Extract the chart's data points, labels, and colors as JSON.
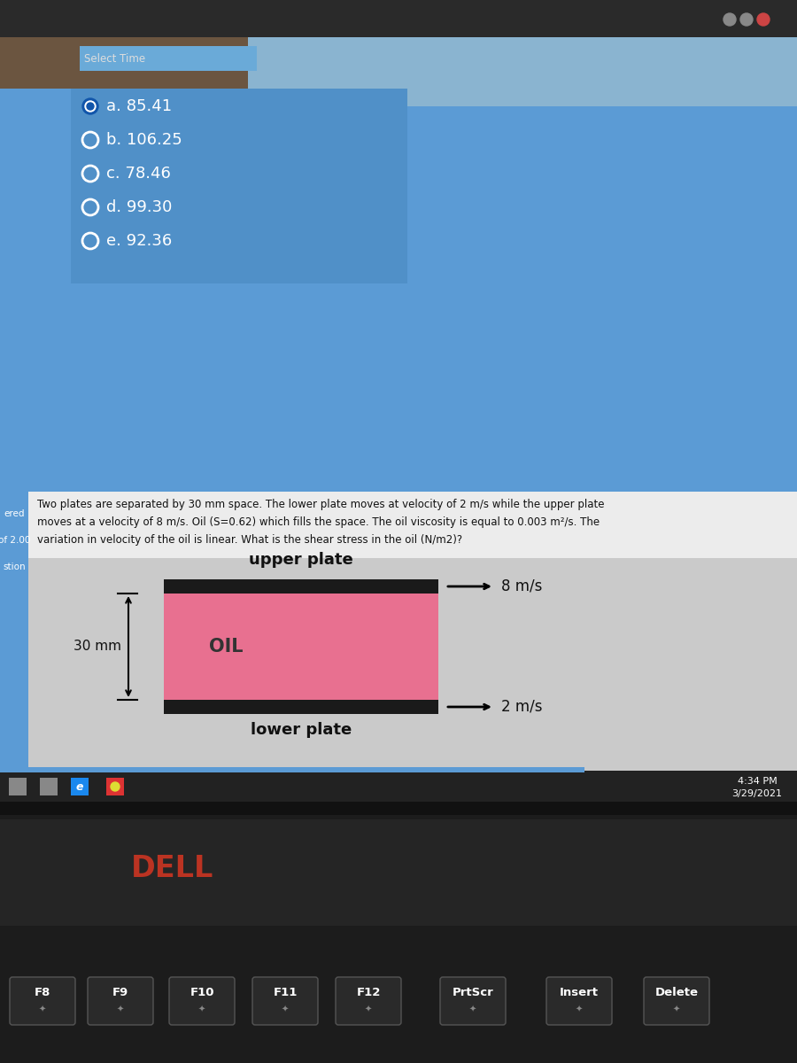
{
  "options": [
    {
      "label": "a. 85.41",
      "selected": true
    },
    {
      "label": "b. 106.25",
      "selected": false
    },
    {
      "label": "c. 78.46",
      "selected": false
    },
    {
      "label": "d. 99.30",
      "selected": false
    },
    {
      "label": "e. 92.36",
      "selected": false
    }
  ],
  "question_lines": [
    "Two plates are separated by 30 mm space. The lower plate moves at velocity of 2 m/s while the upper plate",
    "moves at a velocity of 8 m/s. Oil (S=0.62) which fills the space. The oil viscosity is equal to 0.003 m²/s. The",
    "variation in velocity of the oil is linear. What is the shear stress in the oil (N/m2)?"
  ],
  "upper_plate_label": "upper plate",
  "lower_plate_label": "lower plate",
  "oil_label": "OIL",
  "upper_velocity": "8 m/s",
  "lower_velocity": "2 m/s",
  "dimension_label": "30 mm",
  "plate_color": "#1a1a1a",
  "oil_color": "#e87090",
  "sidebar_texts": [
    "ered",
    "of 2.00",
    "stion"
  ],
  "time_text": "4:34 PM",
  "date_text": "3/29/2021",
  "dell_text": "DELL",
  "keyboard_keys": [
    "F8",
    "F9",
    "F10",
    "F11",
    "F12",
    "PrtScr",
    "Insert",
    "Delete"
  ],
  "blue_color": "#5b9bd5",
  "light_gray": "#d4d4d4",
  "dark_bg": "#1e1e1e",
  "taskbar_bg": "#222222",
  "question_bg": "#ececec",
  "diag_bg": "#cacaca",
  "photo_dark": "#4a3a2a",
  "select_time_bg": "#6aaad8"
}
